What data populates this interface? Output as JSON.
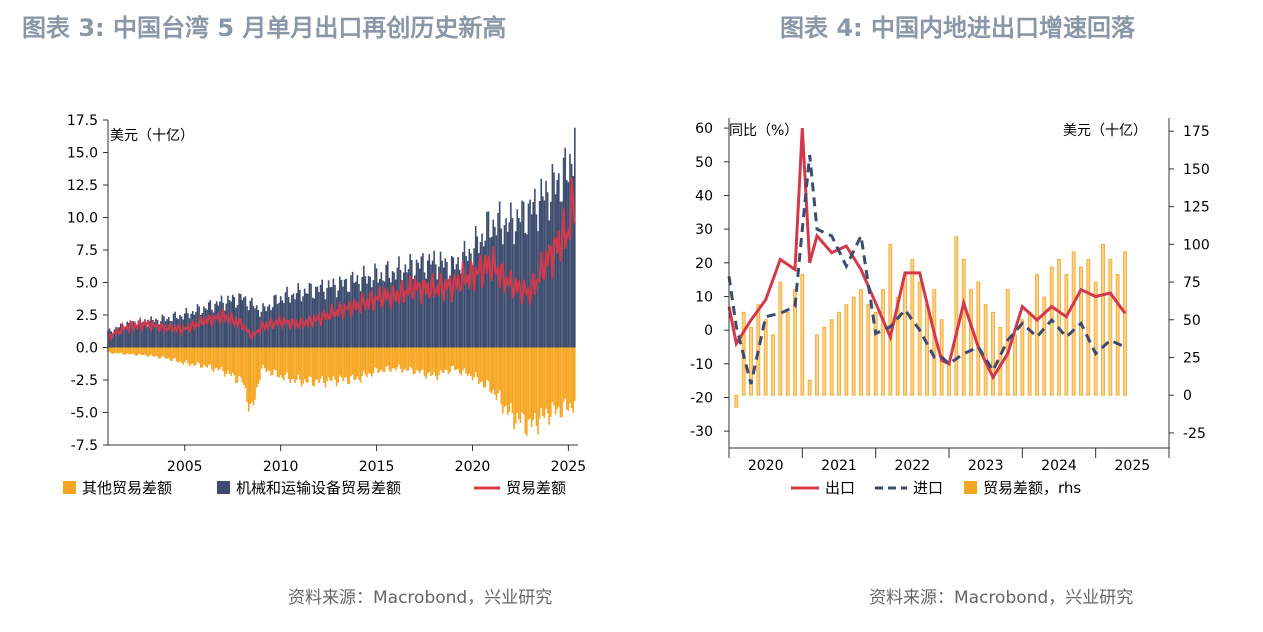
{
  "panels": {
    "left": {
      "title": "图表 3: 中国台湾  5 月单月出口再创历史新高",
      "source": "资料来源：Macrobond，兴业研究"
    },
    "right": {
      "title": "图表 4: 中国内地进出口增速回落",
      "source": "资料来源：Macrobond，兴业研究"
    }
  },
  "colors": {
    "orange": "#f5a623",
    "navy": "#3d4c6e",
    "red": "#d4394b",
    "axis": "#333333"
  },
  "chart_data": [
    {
      "type": "area",
      "unit_label": "美元（十亿）",
      "ylim": [
        -7.5,
        17.5
      ],
      "yticks": [
        "17.5",
        "15.0",
        "12.5",
        "10.0",
        "7.5",
        "5.0",
        "2.5",
        "0.0",
        "-2.5",
        "-5.0",
        "-7.5"
      ],
      "ytick_values": [
        17.5,
        15.0,
        12.5,
        10.0,
        7.5,
        5.0,
        2.5,
        0.0,
        -2.5,
        -5.0,
        -7.5
      ],
      "xlim": [
        2001.0,
        2025.5
      ],
      "xticks": [
        "2005",
        "2010",
        "2015",
        "2020",
        "2025"
      ],
      "xtick_values": [
        2005,
        2010,
        2015,
        2020,
        2025
      ],
      "legend": [
        "其他贸易差额",
        "机械和运输设备贸易差额",
        "贸易差额"
      ],
      "series": [
        {
          "name": "机械和运输设备贸易差额",
          "kind": "bar-positive",
          "x": [
            2001,
            2002,
            2003,
            2004,
            2005,
            2006,
            2007,
            2008,
            2009,
            2010,
            2011,
            2012,
            2013,
            2014,
            2015,
            2016,
            2017,
            2018,
            2019,
            2020,
            2021,
            2022,
            2023,
            2024,
            2025,
            2025.4
          ],
          "values": [
            1.2,
            1.8,
            2.0,
            2.2,
            2.5,
            3.0,
            3.5,
            3.8,
            2.8,
            3.8,
            4.2,
            4.5,
            4.8,
            5.2,
            5.5,
            5.8,
            6.3,
            6.6,
            6.2,
            7.5,
            9.5,
            9.5,
            10.5,
            12.0,
            13.5,
            16.8
          ]
        },
        {
          "name": "其他贸易差额",
          "kind": "bar-negative",
          "x": [
            2001,
            2002,
            2003,
            2004,
            2005,
            2006,
            2007,
            2008,
            2008.5,
            2009,
            2010,
            2011,
            2012,
            2013,
            2014,
            2015,
            2016,
            2017,
            2018,
            2019,
            2020,
            2021,
            2022,
            2023,
            2024,
            2025,
            2025.4
          ],
          "values": [
            -0.4,
            -0.5,
            -0.6,
            -0.8,
            -1.2,
            -1.4,
            -1.8,
            -2.6,
            -5.0,
            -1.6,
            -2.2,
            -2.6,
            -2.6,
            -2.5,
            -2.4,
            -1.8,
            -1.6,
            -1.8,
            -2.2,
            -1.6,
            -2.2,
            -3.2,
            -5.2,
            -6.0,
            -5.0,
            -4.6,
            -4.2
          ]
        },
        {
          "name": "贸易差额",
          "kind": "line",
          "x": [
            2001,
            2002,
            2003,
            2004,
            2005,
            2006,
            2007,
            2008,
            2008.5,
            2009,
            2010,
            2011,
            2012,
            2013,
            2014,
            2015,
            2016,
            2017,
            2018,
            2019,
            2020,
            2021,
            2022,
            2023,
            2024,
            2025,
            2025.4
          ],
          "values": [
            0.8,
            1.6,
            1.8,
            1.5,
            1.4,
            2.0,
            2.4,
            1.8,
            0.8,
            1.6,
            2.0,
            1.8,
            2.2,
            2.8,
            3.2,
            3.8,
            4.0,
            4.6,
            4.5,
            4.8,
            5.6,
            6.4,
            4.8,
            4.2,
            7.0,
            9.0,
            12.5
          ]
        }
      ]
    },
    {
      "type": "line",
      "left_unit_label": "同比（%）",
      "right_unit_label": "美元（十亿）",
      "ylim_left": [
        -35,
        63
      ],
      "ylim_right": [
        -35,
        183.75
      ],
      "yticks_left": [
        "60",
        "50",
        "40",
        "30",
        "20",
        "10",
        "0",
        "-10",
        "-20",
        "-30"
      ],
      "ytick_values_left": [
        60,
        50,
        40,
        30,
        20,
        10,
        0,
        -10,
        -20,
        -30
      ],
      "yticks_right": [
        "175",
        "150",
        "125",
        "100",
        "75",
        "50",
        "25",
        "0",
        "-25"
      ],
      "ytick_values_right": [
        175,
        150,
        125,
        100,
        75,
        50,
        25,
        0,
        -25
      ],
      "xlim": [
        2020.0,
        2026.0
      ],
      "xticks": [
        "2020",
        "2021",
        "2022",
        "2023",
        "2024",
        "2025"
      ],
      "xtick_values": [
        2020.5,
        2021.5,
        2022.5,
        2023.5,
        2024.5,
        2025.5
      ],
      "legend": [
        "出口",
        "进口",
        "贸易差额，rhs"
      ],
      "series": [
        {
          "name": "出口",
          "kind": "line",
          "axis": "left",
          "x": [
            2020.0,
            2020.1,
            2020.3,
            2020.5,
            2020.7,
            2020.9,
            2021.0,
            2021.1,
            2021.2,
            2021.4,
            2021.6,
            2021.8,
            2022.0,
            2022.2,
            2022.4,
            2022.6,
            2022.8,
            2022.9,
            2023.0,
            2023.2,
            2023.4,
            2023.6,
            2023.8,
            2024.0,
            2024.2,
            2024.4,
            2024.6,
            2024.8,
            2025.0,
            2025.2,
            2025.4
          ],
          "values": [
            7,
            -4,
            3,
            9,
            21,
            18,
            60,
            20,
            28,
            23,
            25,
            18,
            8,
            -2,
            17,
            17,
            -1,
            -9,
            -10,
            8,
            -5,
            -14,
            -7,
            7,
            3,
            7,
            4,
            12,
            10,
            11,
            5
          ]
        },
        {
          "name": "进口",
          "kind": "dashed",
          "axis": "left",
          "x": [
            2020.0,
            2020.1,
            2020.3,
            2020.5,
            2020.7,
            2020.9,
            2021.0,
            2021.1,
            2021.2,
            2021.4,
            2021.6,
            2021.8,
            2022.0,
            2022.2,
            2022.4,
            2022.6,
            2022.8,
            2022.9,
            2023.0,
            2023.2,
            2023.4,
            2023.6,
            2023.8,
            2024.0,
            2024.2,
            2024.4,
            2024.6,
            2024.8,
            2025.0,
            2025.2,
            2025.4
          ],
          "values": [
            16,
            1,
            -16,
            4,
            5,
            7,
            30,
            52,
            30,
            28,
            19,
            28,
            -1,
            1,
            6,
            0,
            -8,
            -8,
            -10,
            -7,
            -5,
            -12,
            -3,
            2,
            -2,
            3,
            -2,
            2,
            -7,
            -3,
            -5
          ]
        },
        {
          "name": "贸易差额，rhs",
          "kind": "bar",
          "axis": "right",
          "x": [
            2020.1,
            2020.2,
            2020.3,
            2020.4,
            2020.5,
            2020.6,
            2020.7,
            2020.8,
            2020.9,
            2021.0,
            2021.1,
            2021.2,
            2021.3,
            2021.4,
            2021.5,
            2021.6,
            2021.7,
            2021.8,
            2021.9,
            2022.0,
            2022.1,
            2022.2,
            2022.3,
            2022.4,
            2022.5,
            2022.6,
            2022.7,
            2022.8,
            2022.9,
            2023.0,
            2023.1,
            2023.2,
            2023.3,
            2023.4,
            2023.5,
            2023.6,
            2023.7,
            2023.8,
            2023.9,
            2024.0,
            2024.1,
            2024.2,
            2024.3,
            2024.4,
            2024.5,
            2024.6,
            2024.7,
            2024.8,
            2024.9,
            2025.0,
            2025.1,
            2025.2,
            2025.3,
            2025.4
          ],
          "values": [
            -8,
            55,
            45,
            60,
            50,
            40,
            75,
            55,
            70,
            80,
            10,
            40,
            45,
            50,
            55,
            60,
            65,
            70,
            60,
            55,
            70,
            100,
            65,
            80,
            90,
            75,
            60,
            70,
            50,
            20,
            105,
            90,
            70,
            75,
            60,
            55,
            45,
            70,
            40,
            50,
            55,
            80,
            65,
            85,
            90,
            80,
            95,
            85,
            90,
            75,
            100,
            90,
            80,
            95
          ]
        }
      ]
    }
  ]
}
